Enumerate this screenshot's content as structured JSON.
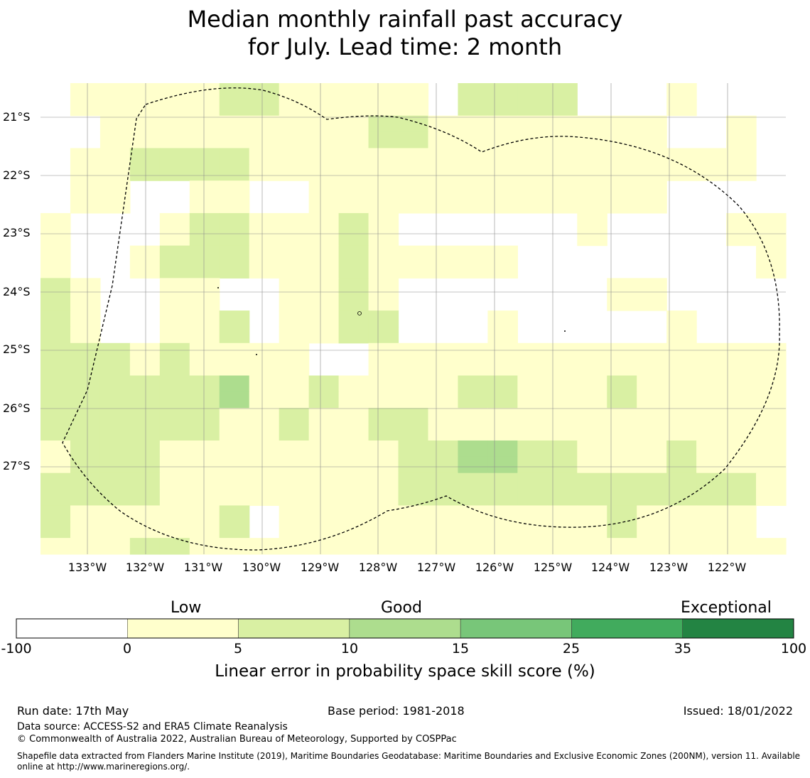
{
  "title": {
    "line1": "Median monthly rainfall past accuracy",
    "line2": "for July. Lead time: 2 month"
  },
  "map": {
    "lat_labels": [
      "21°S",
      "22°S",
      "23°S",
      "24°S",
      "25°S",
      "26°S",
      "27°S"
    ],
    "lon_labels": [
      "133°W",
      "132°W",
      "131°W",
      "130°W",
      "129°W",
      "128°W",
      "127°W",
      "126°W",
      "125°W",
      "124°W",
      "123°W",
      "122°W"
    ],
    "class_colors": [
      "#ffffff",
      "#ffffcc",
      "#d9f0a3",
      "#addd8e",
      "#78c679",
      "#41ab5d",
      "#238443"
    ],
    "skill_grid": [
      "x11111221111102222000100",
      "x11111221111102222000100",
      "x01111111112211111111001",
      "x01111111112211111111001",
      "x11222211111111111111111",
      "x11222211111111111111111",
      "x11001100111111111111000",
      "x11001100111111111111000",
      "1000122111210000001000011",
      "1000122111210000001000011",
      "1001222111211111000000001",
      "1001222111211111000000001",
      "2100110011210000000110000",
      "2100110011210000000110000",
      "2100112011220001000001000",
      "2100112011220001000001000",
      "2221211110011111111111111",
      "2221211110011111111111111",
      "2222223112111122111211111",
      "2222223112111122111211111",
      "2222221121122111111111111",
      "2222221121122111111111111",
      "1222111111112233221112111",
      "1222111111112233221112111",
      "2222111111112222222222221",
      "2222111111112222222222221",
      "2111112011111111111211110",
      "2111112011111111111211110",
      "1112211111111111111111111"
    ]
  },
  "colorbar": {
    "words": [
      "Low",
      "Good",
      "Exceptional"
    ],
    "ticks": [
      "-100",
      "0",
      "5",
      "10",
      "15",
      "25",
      "35",
      "100"
    ],
    "label": "Linear error in probability space skill score (%)"
  },
  "footer": {
    "run_date": "Run date: 17th May",
    "base_period": "Base period: 1981-2018",
    "issued": "Issued: 18/01/2022",
    "data_source": "Data source: ACCESS-S2 and ERA5 Climate Reanalysis",
    "copyright": "© Commonwealth of Australia 2022, Australian Bureau of Meteorology, Supported by COSPPac",
    "shapefile": "Shapefile data extracted from Flanders Marine Institute (2019), Maritime Boundaries Geodatabase: Maritime Boundaries and Exclusive Economic Zones (200NM), version 11. Available online at http://www.marineregions.org/."
  }
}
